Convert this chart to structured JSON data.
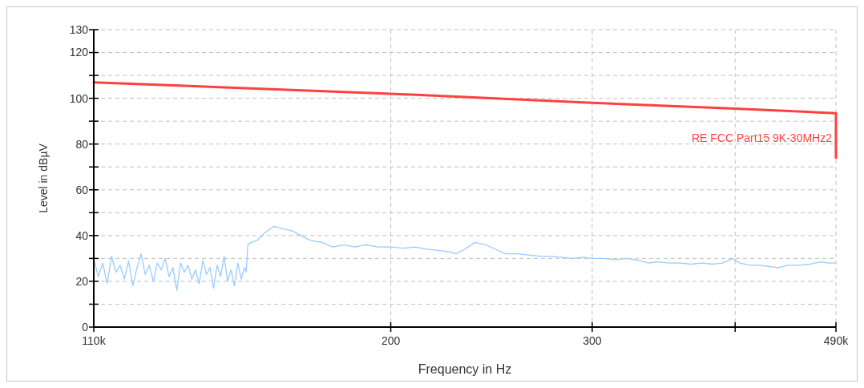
{
  "chart_data": {
    "type": "line",
    "xlabel": "Frequency in Hz",
    "ylabel": "Level in dBµV",
    "log": "x",
    "grid": true,
    "legend": false,
    "marker": "none",
    "line_style": "solid",
    "xlim": [
      110,
      490
    ],
    "xticks": [
      {
        "value": 110,
        "label": "110k"
      },
      200,
      300,
      {
        "value": 400,
        "label": null
      },
      {
        "value": 490,
        "label": "490k"
      }
    ],
    "ylim": [
      0,
      130
    ],
    "yticks": [
      0,
      {
        "value": 10,
        "label": null
      },
      20,
      {
        "value": 30,
        "label": null
      },
      40,
      {
        "value": 50,
        "label": null
      },
      60,
      {
        "value": 70,
        "label": null
      },
      80,
      {
        "value": 90,
        "label": null
      },
      100,
      {
        "value": 110,
        "label": null
      },
      120,
      130
    ],
    "series": [
      {
        "name": "RE  FCC Part15  9K-30MHz2",
        "color": "#ff4040",
        "x": [
          110,
          200,
          300,
          400,
          490,
          490
        ],
        "values": [
          107,
          102,
          98,
          95.5,
          93.5,
          74
        ]
      },
      {
        "color": "#99ccff",
        "x": [
          110,
          111,
          112,
          113,
          114,
          115,
          116,
          117,
          118,
          119,
          120,
          121,
          122,
          123,
          124,
          125,
          126,
          127,
          128,
          129,
          130,
          131,
          132,
          133,
          134,
          135,
          136,
          137,
          138,
          139,
          140,
          141,
          142,
          143,
          144,
          145,
          146,
          147,
          148,
          149,
          149.5,
          150,
          151,
          153,
          155,
          158,
          161,
          164,
          167,
          170,
          174,
          178,
          182,
          186,
          190,
          195,
          200,
          205,
          210,
          215,
          220,
          225,
          228,
          232,
          237,
          242,
          247,
          252,
          258,
          264,
          270,
          276,
          282,
          288,
          295,
          300,
          307,
          314,
          322,
          330,
          336,
          342,
          350,
          358,
          366,
          374,
          382,
          390,
          398,
          404,
          412,
          420,
          428,
          436,
          445,
          455,
          465,
          475,
          483,
          490
        ],
        "values": [
          30,
          22,
          28,
          19,
          31,
          24,
          27,
          21,
          29,
          18,
          26,
          32,
          23,
          27,
          20,
          28,
          25,
          30,
          22,
          26,
          16,
          28,
          24,
          27,
          21,
          25,
          19,
          29,
          23,
          26,
          17,
          27,
          22,
          31,
          20,
          25,
          18,
          28,
          21,
          26,
          24,
          36,
          37,
          38,
          41,
          44,
          43,
          42,
          40,
          38,
          37,
          35,
          36,
          35,
          36,
          35,
          35,
          34.5,
          35,
          34,
          33.5,
          33,
          32,
          34,
          37,
          36,
          34,
          32,
          32,
          31.5,
          31,
          31,
          30.5,
          30,
          30.5,
          30,
          30,
          29.5,
          30,
          29,
          28,
          28.5,
          28,
          28,
          27.5,
          28,
          27.5,
          28,
          30,
          28,
          27,
          27,
          26.5,
          26,
          27,
          27,
          27.5,
          28.5,
          28,
          28
        ]
      }
    ]
  }
}
